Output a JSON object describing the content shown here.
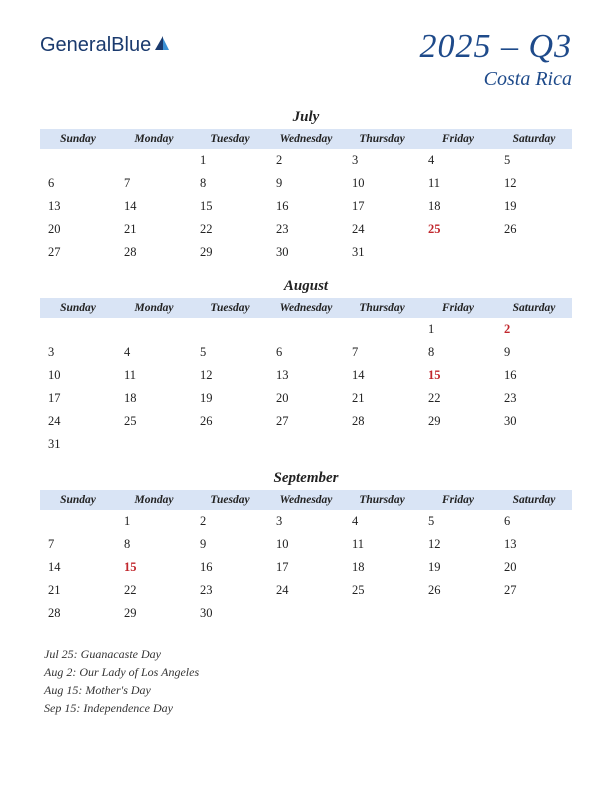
{
  "logo": {
    "text1": "General",
    "text2": "Blue"
  },
  "header": {
    "title": "2025 – Q3",
    "country": "Costa Rica"
  },
  "day_headers": [
    "Sunday",
    "Monday",
    "Tuesday",
    "Wednesday",
    "Thursday",
    "Friday",
    "Saturday"
  ],
  "months": [
    {
      "name": "July",
      "weeks": [
        [
          "",
          "",
          "1",
          "2",
          "3",
          "4",
          "5"
        ],
        [
          "6",
          "7",
          "8",
          "9",
          "10",
          "11",
          "12"
        ],
        [
          "13",
          "14",
          "15",
          "16",
          "17",
          "18",
          "19"
        ],
        [
          "20",
          "21",
          "22",
          "23",
          "24",
          "25",
          "26"
        ],
        [
          "27",
          "28",
          "29",
          "30",
          "31",
          "",
          ""
        ]
      ],
      "holidays": [
        "25"
      ]
    },
    {
      "name": "August",
      "weeks": [
        [
          "",
          "",
          "",
          "",
          "",
          "1",
          "2"
        ],
        [
          "3",
          "4",
          "5",
          "6",
          "7",
          "8",
          "9"
        ],
        [
          "10",
          "11",
          "12",
          "13",
          "14",
          "15",
          "16"
        ],
        [
          "17",
          "18",
          "19",
          "20",
          "21",
          "22",
          "23"
        ],
        [
          "24",
          "25",
          "26",
          "27",
          "28",
          "29",
          "30"
        ],
        [
          "31",
          "",
          "",
          "",
          "",
          "",
          ""
        ]
      ],
      "holidays": [
        "2",
        "15"
      ]
    },
    {
      "name": "September",
      "weeks": [
        [
          "",
          "1",
          "2",
          "3",
          "4",
          "5",
          "6"
        ],
        [
          "7",
          "8",
          "9",
          "10",
          "11",
          "12",
          "13"
        ],
        [
          "14",
          "15",
          "16",
          "17",
          "18",
          "19",
          "20"
        ],
        [
          "21",
          "22",
          "23",
          "24",
          "25",
          "26",
          "27"
        ],
        [
          "28",
          "29",
          "30",
          "",
          "",
          "",
          ""
        ]
      ],
      "holidays": [
        "15"
      ]
    }
  ],
  "holiday_list": [
    "Jul 25: Guanacaste Day",
    "Aug 2: Our Lady of Los Angeles",
    "Aug 15: Mother's Day",
    "Sep 15: Independence Day"
  ],
  "colors": {
    "header_bg": "#d9e4f5",
    "title_color": "#1e4a8a",
    "holiday_color": "#c1272d"
  }
}
